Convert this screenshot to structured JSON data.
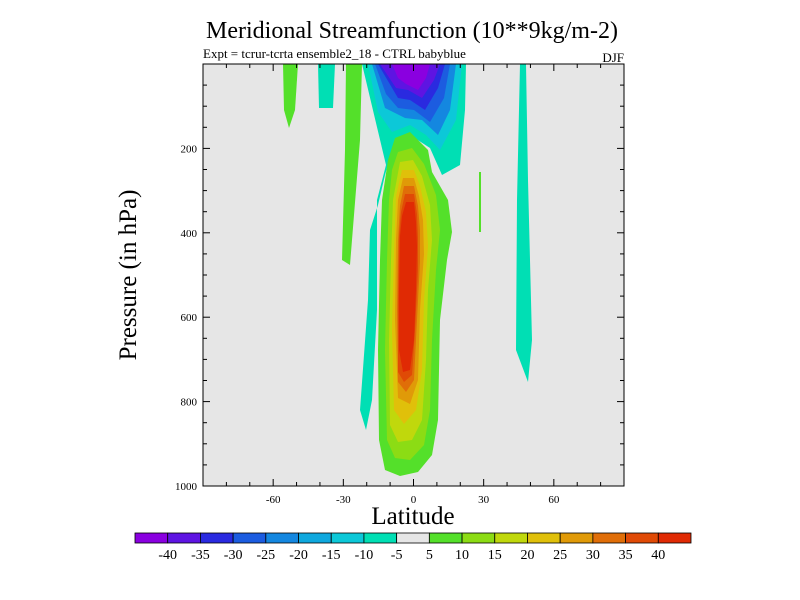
{
  "chart_data": {
    "type": "heatmap",
    "title": "Meridional Streamfunction (10**9kg/m-2)",
    "subtitle_left": "Expt = tcrur-tcrta   ensemble2_18 - CTRL babyblue",
    "subtitle_right": "DJF",
    "xlabel": "Latitude",
    "ylabel": "Pressure (in hPa)",
    "xlim": [
      -90,
      90
    ],
    "ylim": [
      1000,
      0
    ],
    "x_ticks": [
      -60,
      -30,
      0,
      30,
      60
    ],
    "x_tick_labels": [
      "-60",
      "-30",
      "0",
      "30",
      "60"
    ],
    "y_ticks": [
      200,
      400,
      600,
      800,
      1000
    ],
    "y_tick_labels": [
      "200",
      "400",
      "600",
      "800",
      "1000"
    ],
    "background_color": "#e6e6e6",
    "colorbar": {
      "levels": [
        -40,
        -35,
        -30,
        -25,
        -20,
        -15,
        -10,
        -5,
        5,
        10,
        15,
        20,
        25,
        30,
        35,
        40
      ],
      "labels": [
        "-40",
        "-35",
        "-30",
        "-25",
        "-20",
        "-15",
        "-10",
        "-5",
        "5",
        "10",
        "15",
        "20",
        "25",
        "30",
        "35",
        "40"
      ],
      "colors": [
        "#8a00e0",
        "#5e14e2",
        "#2a2ae0",
        "#1c5ce0",
        "#1487e0",
        "#0fa8de",
        "#0cc8d8",
        "#00dfb4",
        "#e6e6e6",
        "#54e02a",
        "#8cdc14",
        "#c0d80c",
        "#e0c00a",
        "#e09a08",
        "#e06e08",
        "#e04a06",
        "#e02a04"
      ]
    },
    "features": [
      {
        "sign": "negative",
        "description_level": -40,
        "lat_center": 2,
        "p_top": 0,
        "p_bottom": 60
      },
      {
        "sign": "negative",
        "description_level": -10,
        "lat_center": 2,
        "p_top": 0,
        "p_bottom": 200
      },
      {
        "sign": "positive",
        "description_level": 40,
        "lat_center": -3,
        "p_top": 300,
        "p_bottom": 820
      },
      {
        "sign": "positive",
        "description_level": 5,
        "lat_center": -3,
        "p_top": 200,
        "p_bottom": 980
      }
    ]
  }
}
